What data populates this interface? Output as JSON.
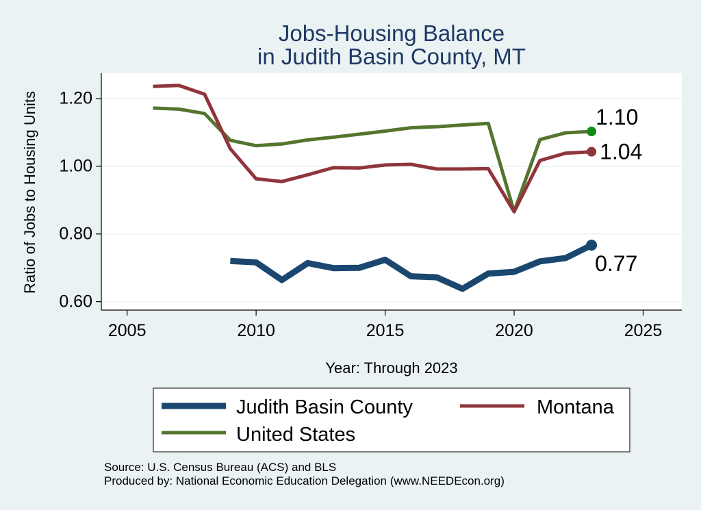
{
  "chart_data": {
    "type": "line",
    "title": [
      "Jobs-Housing Balance",
      "in Judith Basin County, MT"
    ],
    "xlabel": "Year: Through 2023",
    "ylabel": "Ratio of Jobs to Housing Units",
    "xlim": [
      2004,
      2026.5
    ],
    "ylim": [
      0.575,
      1.275
    ],
    "x_ticks": [
      2005,
      2010,
      2015,
      2020,
      2025
    ],
    "x_tick_labels": [
      "2005",
      "2010",
      "2015",
      "2020",
      "2025"
    ],
    "y_ticks": [
      0.6,
      0.8,
      1.0,
      1.2
    ],
    "y_tick_labels": [
      "0.60",
      "0.80",
      "1.00",
      "1.20"
    ],
    "grid": true,
    "legend_position": "bottom",
    "series": [
      {
        "name": "Judith Basin County",
        "color": "#1a476f",
        "x": [
          2009,
          2010,
          2011,
          2012,
          2013,
          2014,
          2015,
          2016,
          2017,
          2018,
          2019,
          2020,
          2021,
          2022,
          2023
        ],
        "values": [
          0.72,
          0.716,
          0.664,
          0.714,
          0.699,
          0.7,
          0.724,
          0.675,
          0.672,
          0.638,
          0.683,
          0.688,
          0.719,
          0.729,
          0.767
        ],
        "end_label": "0.77"
      },
      {
        "name": "Montana",
        "color": "#90353b",
        "x": [
          2006,
          2007,
          2008,
          2009,
          2010,
          2011,
          2012,
          2013,
          2014,
          2015,
          2016,
          2017,
          2018,
          2019,
          2020,
          2021,
          2022,
          2023
        ],
        "values": [
          1.236,
          1.239,
          1.213,
          1.052,
          0.963,
          0.955,
          0.975,
          0.996,
          0.995,
          1.004,
          1.006,
          0.992,
          0.992,
          0.993,
          0.866,
          1.017,
          1.039,
          1.043
        ],
        "end_label": "1.04"
      },
      {
        "name": "United States",
        "color": "#55752f",
        "x": [
          2006,
          2007,
          2008,
          2009,
          2010,
          2011,
          2012,
          2013,
          2014,
          2015,
          2016,
          2017,
          2018,
          2019,
          2020,
          2021,
          2022,
          2023
        ],
        "values": [
          1.172,
          1.169,
          1.156,
          1.077,
          1.061,
          1.066,
          1.078,
          1.086,
          1.095,
          1.104,
          1.114,
          1.117,
          1.122,
          1.127,
          0.866,
          1.079,
          1.099,
          1.103
        ],
        "end_label": "1.10",
        "end_marker_color": "#138a13"
      }
    ],
    "legend": [
      {
        "label": "Judith Basin County",
        "color": "#1a476f"
      },
      {
        "label": "Montana",
        "color": "#90353b"
      },
      {
        "label": "United States",
        "color": "#55752f"
      }
    ],
    "notes": [
      "Source: U.S. Census Bureau (ACS) and BLS",
      "Produced by: National Economic Education Delegation (www.NEEDEcon.org)"
    ]
  }
}
